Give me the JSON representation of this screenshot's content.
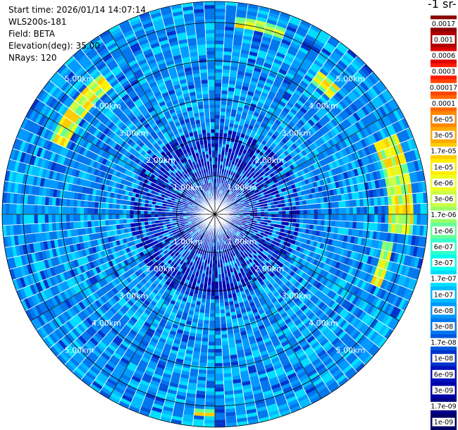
{
  "info": {
    "start_time": "Start time: 2026/01/14 14:07:14",
    "instrument": "WLS200s-181",
    "field": "Field: BETA",
    "elevation": "Elevation(deg): 35.00",
    "nrays": "NRays: 120"
  },
  "colorbar": {
    "title": "-1 sr-",
    "ticks": [
      "0.0017",
      "0.001",
      "0.0006",
      "0.0003",
      "0.00017",
      "0.0001",
      "6e-05",
      "3e-05",
      "1.7e-05",
      "1e-05",
      "6e-06",
      "3e-06",
      "1.7e-06",
      "1e-06",
      "6e-07",
      "3e-07",
      "1.7e-07",
      "1e-07",
      "6e-08",
      "3e-08",
      "1.7e-08",
      "1e-08",
      "6e-09",
      "3e-09",
      "1.7e-09",
      "1e-09"
    ],
    "colors": [
      "#8b0000",
      "#b00000",
      "#dd0000",
      "#ff1a00",
      "#ff4400",
      "#ff6600",
      "#ff8800",
      "#ffaa00",
      "#ffcc00",
      "#ffee00",
      "#eeff22",
      "#ccff44",
      "#99ff66",
      "#66ff99",
      "#33ffcc",
      "#00ffee",
      "#00ddff",
      "#00bbff",
      "#0099ff",
      "#0077ee",
      "#0055dd",
      "#0033cc",
      "#0011bb",
      "#0000aa",
      "#000088",
      "#000066"
    ]
  },
  "chart_data": {
    "type": "heatmap",
    "title": "",
    "elevation_deg": 35.0,
    "n_rays": 120,
    "field": "BETA",
    "range_ring_labels": [
      "1.00km",
      "2.00km",
      "3.00km",
      "4.00km",
      "5.00km"
    ],
    "ranges_km": [
      1,
      2,
      3,
      4,
      5
    ],
    "color_scale": "log",
    "vmin": 1e-09,
    "vmax": 0.0017,
    "high_backscatter_features": [
      {
        "azimuth_range_deg": [
          295,
          320
        ],
        "range_km": [
          4.3,
          4.7
        ],
        "approx_value": "1e-05 to 6e-05"
      },
      {
        "azimuth_range_deg": [
          5,
          20
        ],
        "range_km": [
          4.9,
          5.2
        ],
        "approx_value": "1e-05 to 3e-05"
      },
      {
        "azimuth_range_deg": [
          35,
          45
        ],
        "range_km": [
          4.3,
          4.6
        ],
        "approx_value": "1e-05 to 3e-05"
      },
      {
        "azimuth_range_deg": [
          65,
          95
        ],
        "range_km": [
          4.5,
          5.2
        ],
        "approx_value": "6e-06 to 6e-05"
      },
      {
        "azimuth_range_deg": [
          100,
          115
        ],
        "range_km": [
          4.4,
          4.7
        ],
        "approx_value": "6e-06 to 1.7e-05"
      },
      {
        "azimuth_range_deg": [
          180,
          185
        ],
        "range_km": [
          5.1,
          5.3
        ],
        "approx_value": "6e-06 to 1.7e-05"
      }
    ]
  }
}
